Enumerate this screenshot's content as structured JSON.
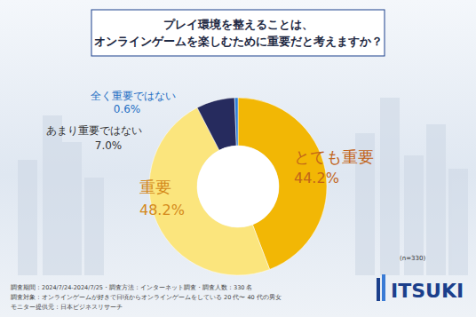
{
  "chart_data": {
    "type": "pie",
    "title": "プレイ環境を整えることは、\nオンラインゲームを楽しむために重要だと考えますか？",
    "categories": [
      "とても重要",
      "重要",
      "あまり重要ではない",
      "全く重要ではない"
    ],
    "values": [
      44.2,
      48.2,
      7.0,
      0.6
    ],
    "value_labels": [
      "44.2%",
      "48.2%",
      "7.0%",
      "0.6%"
    ],
    "colors": [
      "#f2b705",
      "#fbe57d",
      "#262b5e",
      "#2f7fd6"
    ],
    "data_labels": true,
    "sample_size": "(n=330)",
    "notes": [
      "調査期間：2024/7/24-2024/7/25・調査方法：インターネット調査・調査人数：330 名",
      "調査対象：オンラインゲームが好きで日頃からオンラインゲームをしている 20 代〜 40 代の男女",
      "モニター提供元：日本ビジネスリサーチ"
    ],
    "brand": "ITSUKI"
  }
}
